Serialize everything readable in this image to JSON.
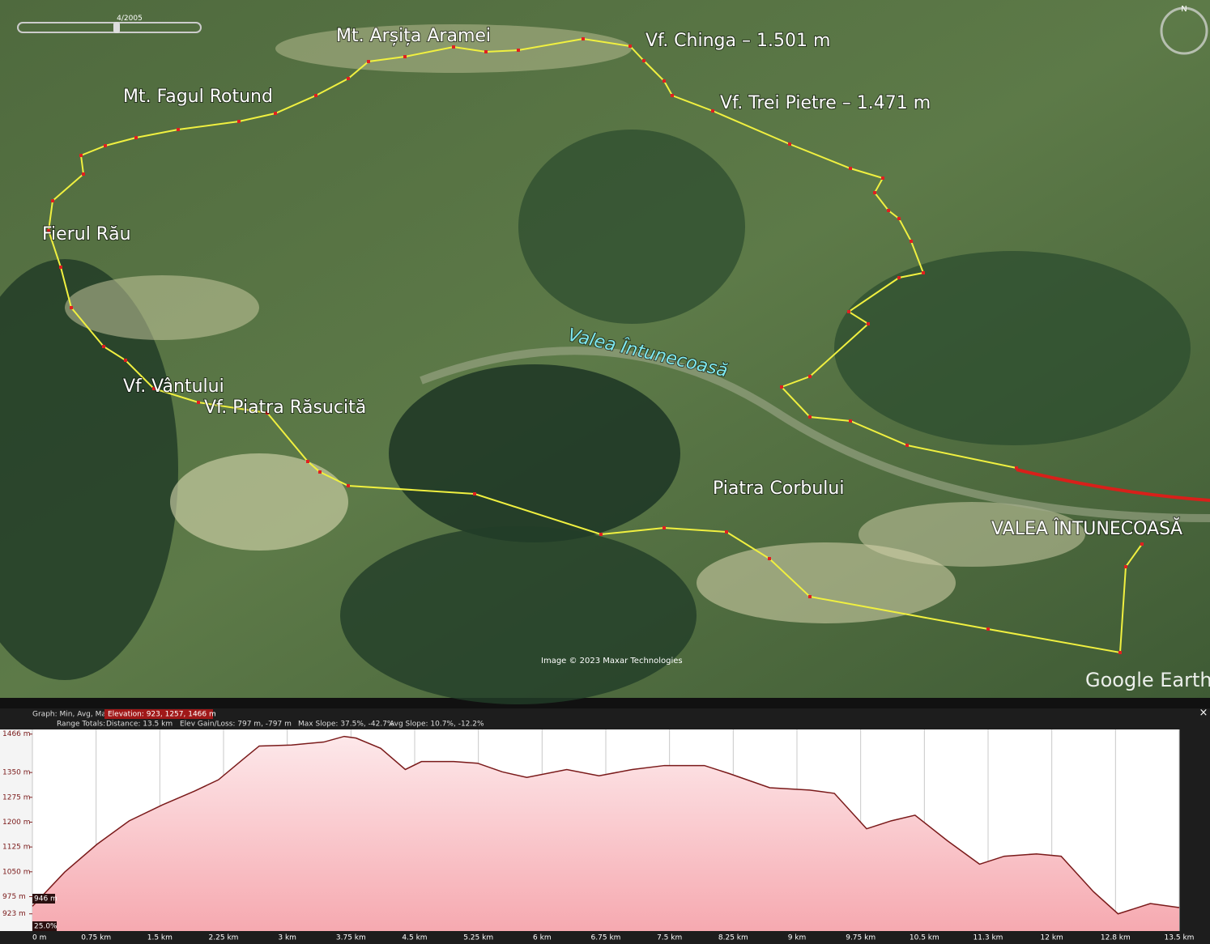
{
  "map": {
    "timeline": "4/2005",
    "labels": [
      "Mt. Arșița Aramei",
      "Vf. Chinga – 1.501 m",
      "Vf. Trei Pietre – 1.471 m",
      "Mt. Fagul Rotund",
      "Fierul Rău",
      "Valea Întunecoasă",
      "Vf. Vântului",
      "Vf. Piatra Răsucită",
      "Piatra Corbului",
      "VALEA ÎNTUNECOASĂ"
    ],
    "credit": "Image © 2023 Maxar Technologies",
    "brand": "Google Earth",
    "compass": "N"
  },
  "graph_header": {
    "graph": "Graph: Min, Avg, Max",
    "elevation": "Elevation: 923, 1257, 1466 m",
    "range_totals": "Range Totals:",
    "distance": "Distance: 13.5 km",
    "gain_loss": "Elev Gain/Loss: 797 m, -797 m",
    "max_slope": "Max Slope: 37.5%, -42.7%",
    "avg_slope": "Avg Slope: 10.7%, -12.2%",
    "close": "×"
  },
  "cursor": {
    "elevation": "946 m",
    "slope": "25.0%"
  },
  "chart_data": {
    "type": "area",
    "color": "#7a1a1a",
    "x": [
      0,
      0.38,
      0.76,
      1.14,
      1.53,
      1.91,
      2.19,
      2.48,
      2.67,
      3.05,
      3.43,
      3.67,
      3.81,
      4.1,
      4.39,
      4.58,
      4.96,
      5.24,
      5.53,
      5.82,
      6.29,
      6.67,
      7.06,
      7.44,
      7.91,
      8.2,
      8.68,
      9.15,
      9.44,
      9.82,
      10.11,
      10.39,
      10.77,
      11.15,
      11.44,
      11.82,
      12.11,
      12.49,
      12.78,
      13.16,
      13.5
    ],
    "values": [
      946,
      1049,
      1133,
      1204,
      1252,
      1294,
      1328,
      1390,
      1430,
      1433,
      1442,
      1459,
      1454,
      1423,
      1359,
      1383,
      1383,
      1378,
      1352,
      1335,
      1359,
      1340,
      1359,
      1371,
      1371,
      1347,
      1304,
      1297,
      1287,
      1180,
      1204,
      1221,
      1144,
      1073,
      1097,
      1104,
      1097,
      990,
      923,
      954,
      942
    ],
    "xlim": [
      0,
      13.5
    ],
    "ylim": [
      871,
      1480
    ],
    "xticks": [
      {
        "value": 0,
        "label": "0 m"
      },
      {
        "value": 0.75,
        "label": "0.75 km"
      },
      {
        "value": 1.5,
        "label": "1.5 km"
      },
      {
        "value": 2.25,
        "label": "2.25 km"
      },
      {
        "value": 3,
        "label": "3 km"
      },
      {
        "value": 3.75,
        "label": "3.75 km"
      },
      {
        "value": 4.5,
        "label": "4.5 km"
      },
      {
        "value": 5.25,
        "label": "5.25 km"
      },
      {
        "value": 6,
        "label": "6 km"
      },
      {
        "value": 6.75,
        "label": "6.75 km"
      },
      {
        "value": 7.5,
        "label": "7.5 km"
      },
      {
        "value": 8.25,
        "label": "8.25 km"
      },
      {
        "value": 9,
        "label": "9 km"
      },
      {
        "value": 9.75,
        "label": "9.75 km"
      },
      {
        "value": 10.5,
        "label": "10.5 km"
      },
      {
        "value": 11.25,
        "label": "11.3 km"
      },
      {
        "value": 12,
        "label": "12 km"
      },
      {
        "value": 12.75,
        "label": "12.8 km"
      },
      {
        "value": 13.5,
        "label": "13.5 km"
      }
    ],
    "yticks": [
      {
        "value": 923,
        "label": "923 m"
      },
      {
        "value": 975,
        "label": "975 m"
      },
      {
        "value": 1050,
        "label": "1050 m"
      },
      {
        "value": 1125,
        "label": "1125 m"
      },
      {
        "value": 1200,
        "label": "1200 m"
      },
      {
        "value": 1275,
        "label": "1275 m"
      },
      {
        "value": 1350,
        "label": "1350 m"
      },
      {
        "value": 1466,
        "label": "1466 m"
      }
    ],
    "grid": true
  }
}
